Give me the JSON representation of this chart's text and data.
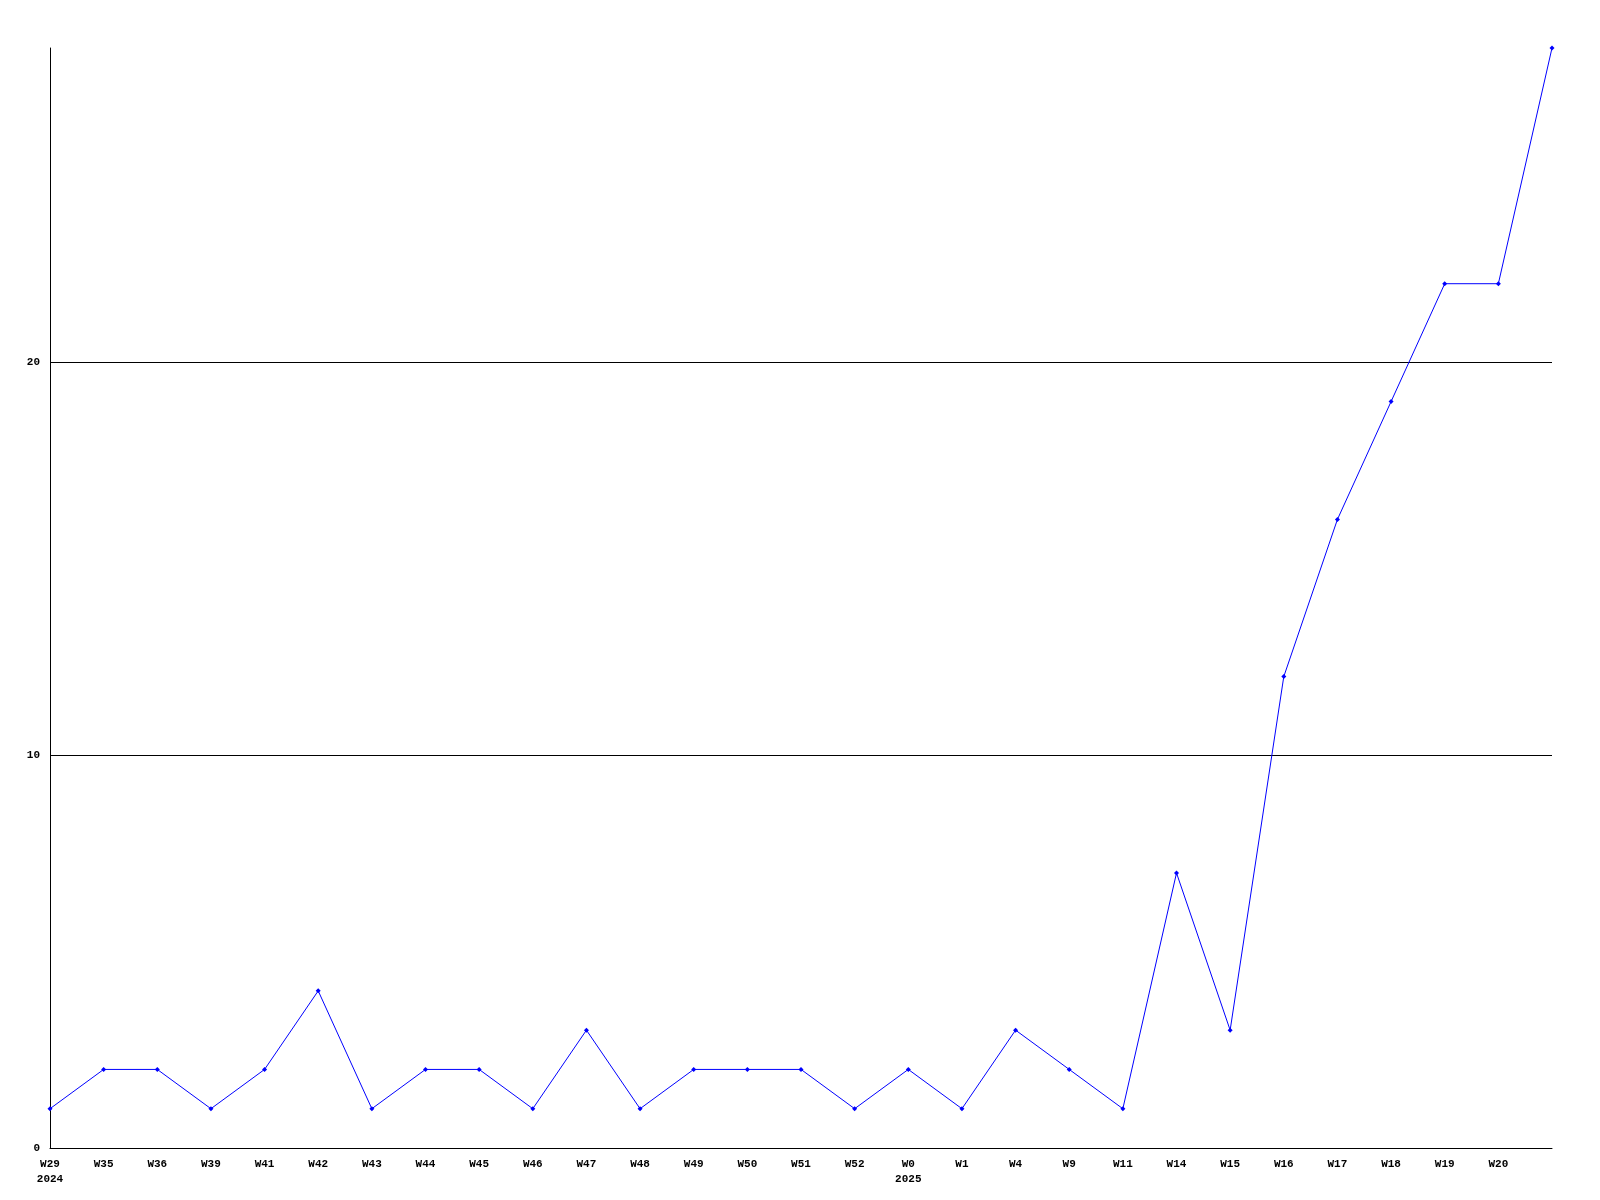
{
  "chart_data": {
    "type": "line",
    "categories": [
      "W29\n2024",
      "W35",
      "W36",
      "W39",
      "W41",
      "W42",
      "W43",
      "W44",
      "W45",
      "W46",
      "W47",
      "W48",
      "W49",
      "W50",
      "W51",
      "W52",
      "W0\n2025",
      "W1",
      "W4",
      "W9",
      "W11",
      "W14",
      "W15",
      "W16",
      "W17",
      "W18",
      "W19",
      "W20",
      null
    ],
    "series": [
      {
        "color": "#0000ff",
        "values": [
          1,
          2,
          2,
          1,
          2,
          4,
          1,
          2,
          2,
          1,
          3,
          1,
          2,
          2,
          2,
          1,
          2,
          1,
          3,
          2,
          1,
          7,
          3,
          12,
          16,
          19,
          22,
          22,
          28
        ]
      }
    ],
    "ylim": [
      0,
      28
    ],
    "yticks": [
      0,
      10,
      20
    ],
    "grid": "y",
    "marker": "diamond",
    "line_style": "solid"
  }
}
